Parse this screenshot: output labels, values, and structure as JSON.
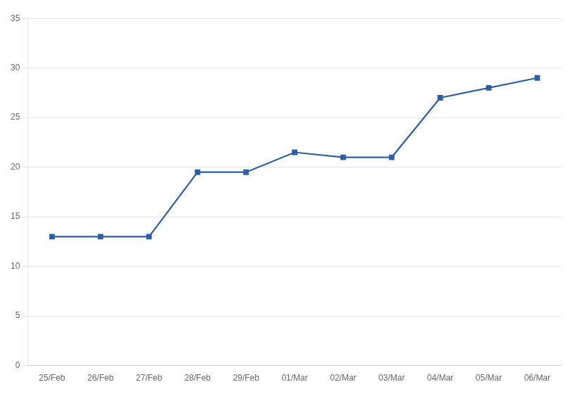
{
  "chart_data": {
    "type": "line",
    "categories": [
      "25/Feb",
      "26/Feb",
      "27/Feb",
      "28/Feb",
      "29/Feb",
      "01/Mar",
      "02/Mar",
      "03/Mar",
      "04/Mar",
      "05/Mar",
      "06/Mar"
    ],
    "values": [
      13,
      13,
      13,
      19.5,
      19.5,
      21.5,
      21,
      21,
      27,
      28,
      29
    ],
    "color": "#2E5FA3",
    "marker": "square",
    "ylim": [
      0,
      35
    ],
    "yticks": [
      0,
      5,
      10,
      15,
      20,
      25,
      30,
      35
    ],
    "grid": "y"
  }
}
